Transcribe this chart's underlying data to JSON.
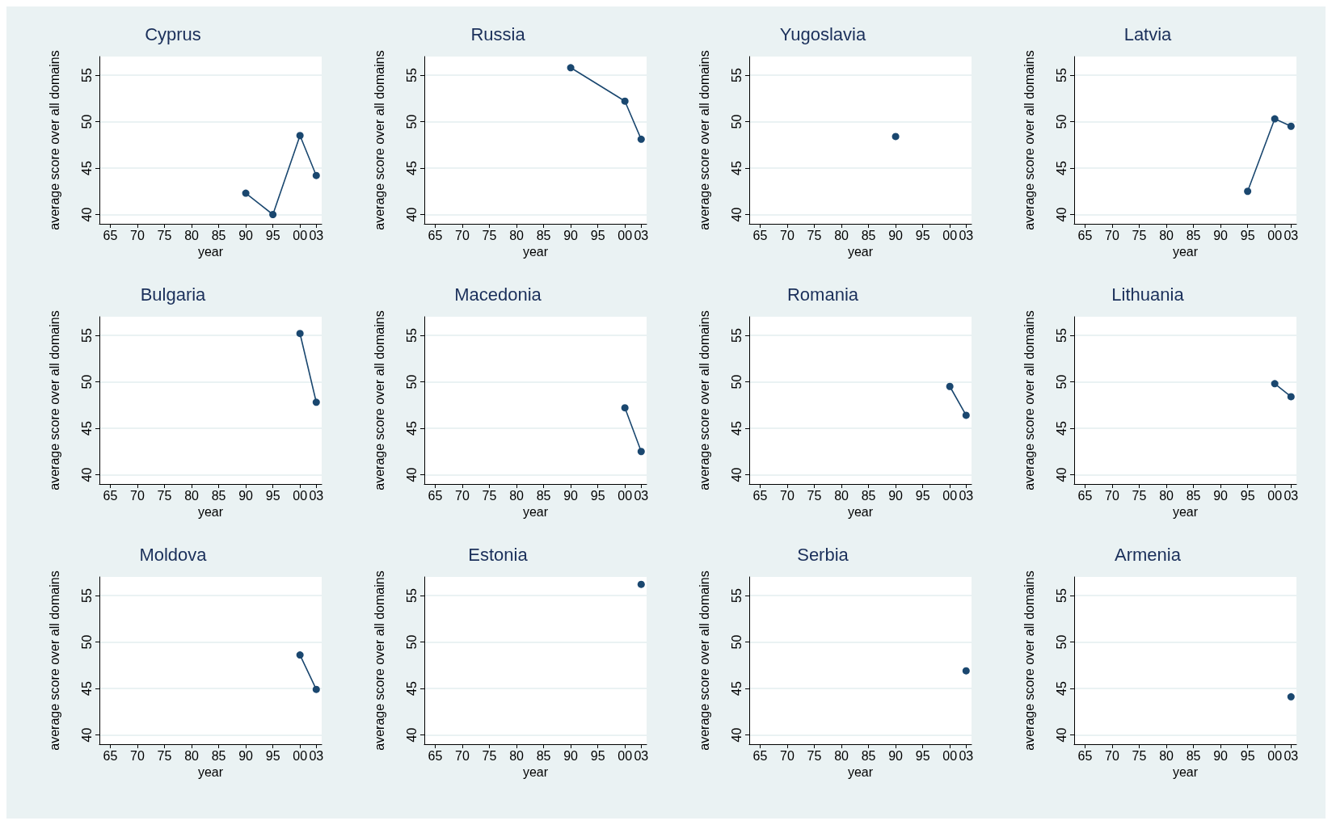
{
  "chart_data": [
    {
      "type": "line",
      "title": "Cyprus",
      "xlabel": "year",
      "ylabel": "average score over all domains",
      "x": [
        1990,
        1995,
        2000,
        2003
      ],
      "values": [
        42.3,
        40.0,
        48.5,
        44.2
      ],
      "color": "#1a476f",
      "xlim": [
        1963,
        2004
      ],
      "ylim": [
        39,
        57
      ],
      "xticks": [
        {
          "value": 1965,
          "label": "65"
        },
        {
          "value": 1970,
          "label": "70"
        },
        {
          "value": 1975,
          "label": "75"
        },
        {
          "value": 1980,
          "label": "80"
        },
        {
          "value": 1985,
          "label": "85"
        },
        {
          "value": 1990,
          "label": "90"
        },
        {
          "value": 1995,
          "label": "95"
        },
        {
          "value": 2000,
          "label": "00"
        },
        {
          "value": 2003,
          "label": "03"
        }
      ],
      "yticks": [
        40,
        45,
        50,
        55
      ],
      "grid": "y",
      "marker": "circle",
      "line_style": "solid"
    },
    {
      "type": "line",
      "title": "Russia",
      "xlabel": "year",
      "ylabel": "average score over all domains",
      "x": [
        1990,
        2000,
        2003
      ],
      "values": [
        55.8,
        52.2,
        48.1
      ],
      "color": "#1a476f",
      "xlim": [
        1963,
        2004
      ],
      "ylim": [
        39,
        57
      ],
      "xticks": [
        {
          "value": 1965,
          "label": "65"
        },
        {
          "value": 1970,
          "label": "70"
        },
        {
          "value": 1975,
          "label": "75"
        },
        {
          "value": 1980,
          "label": "80"
        },
        {
          "value": 1985,
          "label": "85"
        },
        {
          "value": 1990,
          "label": "90"
        },
        {
          "value": 1995,
          "label": "95"
        },
        {
          "value": 2000,
          "label": "00"
        },
        {
          "value": 2003,
          "label": "03"
        }
      ],
      "yticks": [
        40,
        45,
        50,
        55
      ],
      "grid": "y",
      "marker": "circle",
      "line_style": "solid"
    },
    {
      "type": "line",
      "title": "Yugoslavia",
      "xlabel": "year",
      "ylabel": "average score over all domains",
      "x": [
        1990
      ],
      "values": [
        48.4
      ],
      "color": "#1a476f",
      "xlim": [
        1963,
        2004
      ],
      "ylim": [
        39,
        57
      ],
      "xticks": [
        {
          "value": 1965,
          "label": "65"
        },
        {
          "value": 1970,
          "label": "70"
        },
        {
          "value": 1975,
          "label": "75"
        },
        {
          "value": 1980,
          "label": "80"
        },
        {
          "value": 1985,
          "label": "85"
        },
        {
          "value": 1990,
          "label": "90"
        },
        {
          "value": 1995,
          "label": "95"
        },
        {
          "value": 2000,
          "label": "00"
        },
        {
          "value": 2003,
          "label": "03"
        }
      ],
      "yticks": [
        40,
        45,
        50,
        55
      ],
      "grid": "y",
      "marker": "circle",
      "line_style": "solid"
    },
    {
      "type": "line",
      "title": "Latvia",
      "xlabel": "year",
      "ylabel": "average score over all domains",
      "x": [
        1995,
        2000,
        2003
      ],
      "values": [
        42.5,
        50.3,
        49.5
      ],
      "color": "#1a476f",
      "xlim": [
        1963,
        2004
      ],
      "ylim": [
        39,
        57
      ],
      "xticks": [
        {
          "value": 1965,
          "label": "65"
        },
        {
          "value": 1970,
          "label": "70"
        },
        {
          "value": 1975,
          "label": "75"
        },
        {
          "value": 1980,
          "label": "80"
        },
        {
          "value": 1985,
          "label": "85"
        },
        {
          "value": 1990,
          "label": "90"
        },
        {
          "value": 1995,
          "label": "95"
        },
        {
          "value": 2000,
          "label": "00"
        },
        {
          "value": 2003,
          "label": "03"
        }
      ],
      "yticks": [
        40,
        45,
        50,
        55
      ],
      "grid": "y",
      "marker": "circle",
      "line_style": "solid"
    },
    {
      "type": "line",
      "title": "Bulgaria",
      "xlabel": "year",
      "ylabel": "average score over all domains",
      "x": [
        2000,
        2003
      ],
      "values": [
        55.2,
        47.8
      ],
      "color": "#1a476f",
      "xlim": [
        1963,
        2004
      ],
      "ylim": [
        39,
        57
      ],
      "xticks": [
        {
          "value": 1965,
          "label": "65"
        },
        {
          "value": 1970,
          "label": "70"
        },
        {
          "value": 1975,
          "label": "75"
        },
        {
          "value": 1980,
          "label": "80"
        },
        {
          "value": 1985,
          "label": "85"
        },
        {
          "value": 1990,
          "label": "90"
        },
        {
          "value": 1995,
          "label": "95"
        },
        {
          "value": 2000,
          "label": "00"
        },
        {
          "value": 2003,
          "label": "03"
        }
      ],
      "yticks": [
        40,
        45,
        50,
        55
      ],
      "grid": "y",
      "marker": "circle",
      "line_style": "solid"
    },
    {
      "type": "line",
      "title": "Macedonia",
      "xlabel": "year",
      "ylabel": "average score over all domains",
      "x": [
        2000,
        2003
      ],
      "values": [
        47.2,
        42.5
      ],
      "color": "#1a476f",
      "xlim": [
        1963,
        2004
      ],
      "ylim": [
        39,
        57
      ],
      "xticks": [
        {
          "value": 1965,
          "label": "65"
        },
        {
          "value": 1970,
          "label": "70"
        },
        {
          "value": 1975,
          "label": "75"
        },
        {
          "value": 1980,
          "label": "80"
        },
        {
          "value": 1985,
          "label": "85"
        },
        {
          "value": 1990,
          "label": "90"
        },
        {
          "value": 1995,
          "label": "95"
        },
        {
          "value": 2000,
          "label": "00"
        },
        {
          "value": 2003,
          "label": "03"
        }
      ],
      "yticks": [
        40,
        45,
        50,
        55
      ],
      "grid": "y",
      "marker": "circle",
      "line_style": "solid"
    },
    {
      "type": "line",
      "title": "Romania",
      "xlabel": "year",
      "ylabel": "average score over all domains",
      "x": [
        2000,
        2003
      ],
      "values": [
        49.5,
        46.4
      ],
      "color": "#1a476f",
      "xlim": [
        1963,
        2004
      ],
      "ylim": [
        39,
        57
      ],
      "xticks": [
        {
          "value": 1965,
          "label": "65"
        },
        {
          "value": 1970,
          "label": "70"
        },
        {
          "value": 1975,
          "label": "75"
        },
        {
          "value": 1980,
          "label": "80"
        },
        {
          "value": 1985,
          "label": "85"
        },
        {
          "value": 1990,
          "label": "90"
        },
        {
          "value": 1995,
          "label": "95"
        },
        {
          "value": 2000,
          "label": "00"
        },
        {
          "value": 2003,
          "label": "03"
        }
      ],
      "yticks": [
        40,
        45,
        50,
        55
      ],
      "grid": "y",
      "marker": "circle",
      "line_style": "solid"
    },
    {
      "type": "line",
      "title": "Lithuania",
      "xlabel": "year",
      "ylabel": "average score over all domains",
      "x": [
        2000,
        2003
      ],
      "values": [
        49.8,
        48.4
      ],
      "color": "#1a476f",
      "xlim": [
        1963,
        2004
      ],
      "ylim": [
        39,
        57
      ],
      "xticks": [
        {
          "value": 1965,
          "label": "65"
        },
        {
          "value": 1970,
          "label": "70"
        },
        {
          "value": 1975,
          "label": "75"
        },
        {
          "value": 1980,
          "label": "80"
        },
        {
          "value": 1985,
          "label": "85"
        },
        {
          "value": 1990,
          "label": "90"
        },
        {
          "value": 1995,
          "label": "95"
        },
        {
          "value": 2000,
          "label": "00"
        },
        {
          "value": 2003,
          "label": "03"
        }
      ],
      "yticks": [
        40,
        45,
        50,
        55
      ],
      "grid": "y",
      "marker": "circle",
      "line_style": "solid"
    },
    {
      "type": "line",
      "title": "Moldova",
      "xlabel": "year",
      "ylabel": "average score over all domains",
      "x": [
        2000,
        2003
      ],
      "values": [
        48.6,
        44.9
      ],
      "color": "#1a476f",
      "xlim": [
        1963,
        2004
      ],
      "ylim": [
        39,
        57
      ],
      "xticks": [
        {
          "value": 1965,
          "label": "65"
        },
        {
          "value": 1970,
          "label": "70"
        },
        {
          "value": 1975,
          "label": "75"
        },
        {
          "value": 1980,
          "label": "80"
        },
        {
          "value": 1985,
          "label": "85"
        },
        {
          "value": 1990,
          "label": "90"
        },
        {
          "value": 1995,
          "label": "95"
        },
        {
          "value": 2000,
          "label": "00"
        },
        {
          "value": 2003,
          "label": "03"
        }
      ],
      "yticks": [
        40,
        45,
        50,
        55
      ],
      "grid": "y",
      "marker": "circle",
      "line_style": "solid"
    },
    {
      "type": "line",
      "title": "Estonia",
      "xlabel": "year",
      "ylabel": "average score over all domains",
      "x": [
        2003
      ],
      "values": [
        56.2
      ],
      "color": "#1a476f",
      "xlim": [
        1963,
        2004
      ],
      "ylim": [
        39,
        57
      ],
      "xticks": [
        {
          "value": 1965,
          "label": "65"
        },
        {
          "value": 1970,
          "label": "70"
        },
        {
          "value": 1975,
          "label": "75"
        },
        {
          "value": 1980,
          "label": "80"
        },
        {
          "value": 1985,
          "label": "85"
        },
        {
          "value": 1990,
          "label": "90"
        },
        {
          "value": 1995,
          "label": "95"
        },
        {
          "value": 2000,
          "label": "00"
        },
        {
          "value": 2003,
          "label": "03"
        }
      ],
      "yticks": [
        40,
        45,
        50,
        55
      ],
      "grid": "y",
      "marker": "circle",
      "line_style": "solid"
    },
    {
      "type": "line",
      "title": "Serbia",
      "xlabel": "year",
      "ylabel": "average score over all domains",
      "x": [
        2003
      ],
      "values": [
        46.9
      ],
      "color": "#1a476f",
      "xlim": [
        1963,
        2004
      ],
      "ylim": [
        39,
        57
      ],
      "xticks": [
        {
          "value": 1965,
          "label": "65"
        },
        {
          "value": 1970,
          "label": "70"
        },
        {
          "value": 1975,
          "label": "75"
        },
        {
          "value": 1980,
          "label": "80"
        },
        {
          "value": 1985,
          "label": "85"
        },
        {
          "value": 1990,
          "label": "90"
        },
        {
          "value": 1995,
          "label": "95"
        },
        {
          "value": 2000,
          "label": "00"
        },
        {
          "value": 2003,
          "label": "03"
        }
      ],
      "yticks": [
        40,
        45,
        50,
        55
      ],
      "grid": "y",
      "marker": "circle",
      "line_style": "solid"
    },
    {
      "type": "line",
      "title": "Armenia",
      "xlabel": "year",
      "ylabel": "average score over all domains",
      "x": [
        2003
      ],
      "values": [
        44.1
      ],
      "color": "#1a476f",
      "xlim": [
        1963,
        2004
      ],
      "ylim": [
        39,
        57
      ],
      "xticks": [
        {
          "value": 1965,
          "label": "65"
        },
        {
          "value": 1970,
          "label": "70"
        },
        {
          "value": 1975,
          "label": "75"
        },
        {
          "value": 1980,
          "label": "80"
        },
        {
          "value": 1985,
          "label": "85"
        },
        {
          "value": 1990,
          "label": "90"
        },
        {
          "value": 1995,
          "label": "95"
        },
        {
          "value": 2000,
          "label": "00"
        },
        {
          "value": 2003,
          "label": "03"
        }
      ],
      "yticks": [
        40,
        45,
        50,
        55
      ],
      "grid": "y",
      "marker": "circle",
      "line_style": "solid"
    }
  ]
}
